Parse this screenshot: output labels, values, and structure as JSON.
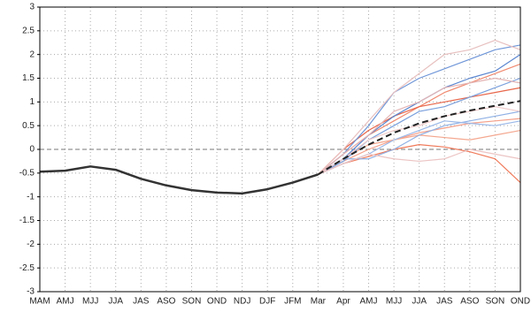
{
  "chart_data": {
    "type": "line",
    "categories": [
      "MAM",
      "AMJ",
      "MJJ",
      "JJA",
      "JAS",
      "ASO",
      "SON",
      "OND",
      "NDJ",
      "DJF",
      "JFM",
      "Mar",
      "Apr",
      "AMJ",
      "MJJ",
      "JJA",
      "JAS",
      "ASO",
      "SON",
      "OND"
    ],
    "ylim": [
      -3,
      3
    ],
    "yticks": [
      -3,
      -2.5,
      -2,
      -1.5,
      -1,
      -0.5,
      0,
      0.5,
      1,
      1.5,
      2,
      2.5,
      3
    ],
    "grid": true,
    "reference_line": 0,
    "series": [
      {
        "color": "#f08a70",
        "linewidth": 1.2,
        "values": [
          null,
          null,
          null,
          null,
          null,
          null,
          null,
          null,
          null,
          null,
          null,
          -0.53,
          -0.1,
          0.3,
          0.6,
          0.9,
          1.2,
          1.4,
          1.6,
          1.8
        ]
      },
      {
        "color": "#f4a08a",
        "linewidth": 1.2,
        "values": [
          null,
          null,
          null,
          null,
          null,
          null,
          null,
          null,
          null,
          null,
          null,
          -0.53,
          -0.25,
          0.0,
          0.2,
          0.35,
          0.45,
          0.55,
          0.6,
          0.65
        ]
      },
      {
        "color": "#f07a5a",
        "linewidth": 1.2,
        "values": [
          null,
          null,
          null,
          null,
          null,
          null,
          null,
          null,
          null,
          null,
          null,
          -0.53,
          -0.3,
          -0.15,
          0.0,
          0.1,
          0.05,
          -0.05,
          -0.2,
          -0.7
        ]
      },
      {
        "color": "#e8664a",
        "linewidth": 1.2,
        "values": [
          null,
          null,
          null,
          null,
          null,
          null,
          null,
          null,
          null,
          null,
          null,
          -0.53,
          0.0,
          0.4,
          0.7,
          0.9,
          1.0,
          1.1,
          1.2,
          1.3
        ]
      },
      {
        "color": "#f4a890",
        "linewidth": 1.2,
        "values": [
          null,
          null,
          null,
          null,
          null,
          null,
          null,
          null,
          null,
          null,
          null,
          -0.53,
          -0.2,
          0.1,
          0.2,
          0.3,
          0.25,
          0.2,
          0.3,
          0.4
        ]
      },
      {
        "color": "#6f96d8",
        "linewidth": 1.2,
        "values": [
          null,
          null,
          null,
          null,
          null,
          null,
          null,
          null,
          null,
          null,
          null,
          -0.53,
          -0.1,
          0.5,
          1.2,
          1.5,
          1.7,
          1.9,
          2.1,
          2.2
        ]
      },
      {
        "color": "#8fb0e4",
        "linewidth": 1.2,
        "values": [
          null,
          null,
          null,
          null,
          null,
          null,
          null,
          null,
          null,
          null,
          null,
          -0.53,
          -0.2,
          -0.2,
          0.0,
          0.3,
          0.5,
          0.6,
          0.7,
          0.8
        ]
      },
      {
        "color": "#5a86d0",
        "linewidth": 1.2,
        "values": [
          null,
          null,
          null,
          null,
          null,
          null,
          null,
          null,
          null,
          null,
          null,
          -0.53,
          -0.2,
          0.3,
          0.7,
          1.0,
          1.3,
          1.5,
          1.65,
          2.0
        ]
      },
      {
        "color": "#9ab8e8",
        "linewidth": 1.2,
        "values": [
          null,
          null,
          null,
          null,
          null,
          null,
          null,
          null,
          null,
          null,
          null,
          -0.53,
          -0.3,
          -0.1,
          0.2,
          0.4,
          0.6,
          0.55,
          0.5,
          0.6
        ]
      },
      {
        "color": "#7aa0dc",
        "linewidth": 1.2,
        "values": [
          null,
          null,
          null,
          null,
          null,
          null,
          null,
          null,
          null,
          null,
          null,
          -0.53,
          -0.25,
          0.2,
          0.5,
          0.8,
          0.9,
          1.1,
          1.3,
          1.5
        ]
      },
      {
        "color": "#ecc4c4",
        "linewidth": 1.2,
        "values": [
          null,
          null,
          null,
          null,
          null,
          null,
          null,
          null,
          null,
          null,
          null,
          -0.53,
          -0.3,
          -0.1,
          -0.2,
          -0.25,
          -0.2,
          0.0,
          -0.1,
          -0.2
        ]
      },
      {
        "color": "#e8c0c0",
        "linewidth": 1.2,
        "values": [
          null,
          null,
          null,
          null,
          null,
          null,
          null,
          null,
          null,
          null,
          null,
          -0.53,
          0.0,
          0.6,
          1.2,
          1.6,
          2.0,
          2.1,
          2.3,
          2.1
        ]
      },
      {
        "color": "#f0caca",
        "linewidth": 1.2,
        "values": [
          null,
          null,
          null,
          null,
          null,
          null,
          null,
          null,
          null,
          null,
          null,
          -0.53,
          -0.2,
          0.2,
          0.4,
          0.5,
          0.7,
          0.8,
          0.9,
          0.8
        ]
      },
      {
        "color": "#e4b4b4",
        "linewidth": 1.2,
        "values": [
          null,
          null,
          null,
          null,
          null,
          null,
          null,
          null,
          null,
          null,
          null,
          -0.53,
          -0.1,
          0.3,
          0.8,
          1.0,
          1.3,
          1.4,
          1.5,
          1.4
        ]
      },
      {
        "color": "#333333",
        "linewidth": 2.5,
        "values": [
          -0.47,
          -0.45,
          -0.36,
          -0.43,
          -0.62,
          -0.76,
          -0.86,
          -0.91,
          -0.93,
          -0.84,
          -0.7,
          -0.53,
          null,
          null,
          null,
          null,
          null,
          null,
          null,
          null
        ]
      },
      {
        "color": "#222222",
        "linewidth": 2,
        "dash": true,
        "values": [
          null,
          null,
          null,
          null,
          null,
          null,
          null,
          null,
          null,
          null,
          null,
          -0.53,
          -0.2,
          0.1,
          0.35,
          0.55,
          0.7,
          0.82,
          0.92,
          1.02
        ]
      }
    ]
  }
}
